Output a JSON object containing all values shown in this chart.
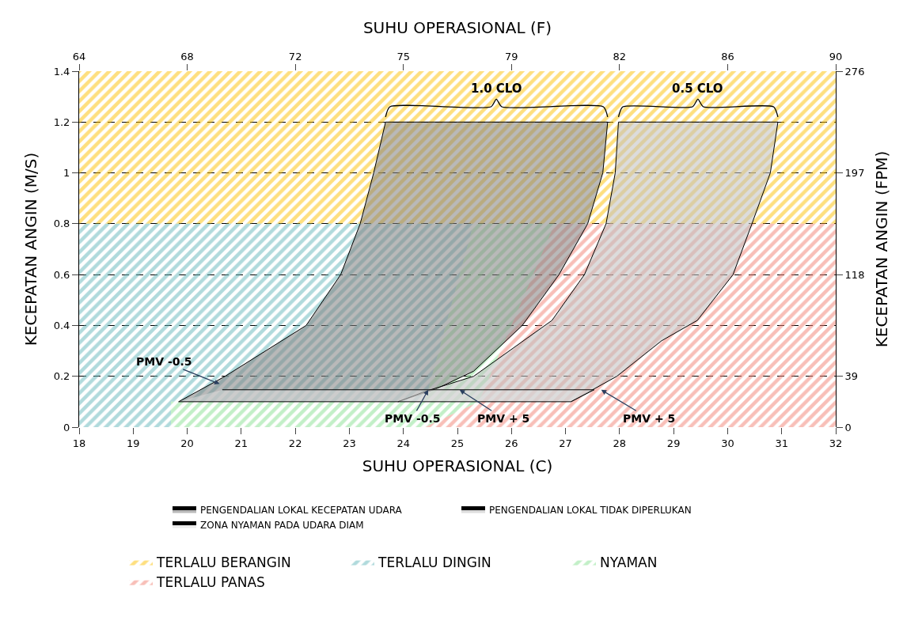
{
  "chart_data": {
    "type": "area",
    "xlabel": "SUHU OPERASIONAL (C)",
    "ylabel": "KECEPATAN ANGIN (M/S)",
    "x2label": "SUHU OPERASIONAL (F)",
    "y2label": "KECEPATAN ANGIN (FPM)",
    "xlim": [
      18,
      32
    ],
    "xticks": [
      18,
      19,
      20,
      21,
      22,
      23,
      24,
      25,
      26,
      27,
      28,
      29,
      30,
      31,
      32
    ],
    "ylim": [
      0,
      1.4
    ],
    "yticks": [
      0,
      0.2,
      0.4,
      0.6,
      0.8,
      1,
      1.2,
      1.4
    ],
    "x2lim": [
      64.4,
      89.6
    ],
    "x2ticks": [
      {
        "value": 64.4,
        "label": "64"
      },
      {
        "value": 68,
        "label": "68"
      },
      {
        "value": 71.6,
        "label": "72"
      },
      {
        "value": 75.2,
        "label": "75"
      },
      {
        "value": 78.8,
        "label": "79"
      },
      {
        "value": 82.4,
        "label": "82"
      },
      {
        "value": 86,
        "label": "86"
      },
      {
        "value": 89.6,
        "label": "90"
      }
    ],
    "y2lim": [
      0,
      275.6
    ],
    "y2ticks": [
      0,
      {
        "value": 39.37,
        "label": "39"
      },
      {
        "value": 118.11,
        "label": "118"
      },
      {
        "value": 196.85,
        "label": "197"
      },
      {
        "value": 275.6,
        "label": "276"
      }
    ],
    "series": [
      {
        "name": "TERLALU BERANGIN",
        "color": "#fdbf00",
        "x": [
          18,
          32,
          32,
          18
        ],
        "values": [
          0.8,
          0.8,
          1.4,
          1.4
        ]
      },
      {
        "name": "TERLALU DINGIN",
        "color": "#62b5b9",
        "x": [
          18,
          19.7,
          19.7,
          24.4,
          25.3,
          18
        ],
        "values": [
          0,
          0,
          0.1,
          0.1,
          0.8,
          0.8
        ]
      },
      {
        "name": "NYAMAN",
        "color": "#86e08f",
        "x": [
          19.7,
          24.4,
          25.4,
          26.8,
          25.3,
          24.4,
          19.7
        ],
        "values": [
          0,
          0,
          0.1,
          0.8,
          0.8,
          0.1,
          0.1
        ]
      },
      {
        "name": "TERLALU PANAS",
        "color": "#f27f72",
        "x": [
          24.4,
          32,
          32,
          26.8,
          25.4
        ],
        "values": [
          0,
          0,
          0.8,
          0.8,
          0.1
        ]
      },
      {
        "name": "PENGENDALIAN LOKAL KECEPATAN UDARA",
        "color": "#808080",
        "x": [
          19.84,
          20.7,
          22.2,
          22.84,
          23.2,
          23.45,
          23.67,
          27.78,
          27.69,
          27.41,
          26.88,
          26.2,
          25.3,
          24.6,
          23.9
        ],
        "values": [
          0.1,
          0.2,
          0.4,
          0.6,
          0.8,
          1.0,
          1.2,
          1.2,
          1.0,
          0.8,
          0.6,
          0.4,
          0.22,
          0.15,
          0.1
        ]
      },
      {
        "name": "PENGENDALIAN LOKAL TIDAK DIPERLUKAN",
        "color": "#c0c0c0",
        "x": [
          23.9,
          24.4,
          25.3,
          26.75,
          27.35,
          27.75,
          27.92,
          27.98,
          30.93,
          30.79,
          30.45,
          30.1,
          29.44,
          28.78,
          27.95,
          27.1
        ],
        "values": [
          0.1,
          0.14,
          0.2,
          0.42,
          0.6,
          0.8,
          1.0,
          1.2,
          1.2,
          1.0,
          0.8,
          0.6,
          0.42,
          0.34,
          0.2,
          0.1
        ]
      },
      {
        "name": "ZONA NYAMAN PADA UDARA DIAM",
        "color": "#dcdcdc",
        "x": [
          19.84,
          27.1,
          27.53,
          20.65
        ],
        "values": [
          0.1,
          0.1,
          0.147,
          0.147
        ]
      },
      {
        "type": "line",
        "color": "#000000",
        "x": [
          23.67,
          23.75,
          25.62,
          25.72,
          25.82,
          27.7,
          27.78
        ],
        "values": [
          1.22,
          1.26,
          1.26,
          1.29,
          1.26,
          1.26,
          1.22
        ]
      },
      {
        "type": "line",
        "color": "#000000",
        "x": [
          27.98,
          28.06,
          29.35,
          29.45,
          29.55,
          30.85,
          30.93
        ],
        "values": [
          1.22,
          1.26,
          1.26,
          1.29,
          1.26,
          1.26,
          1.22
        ]
      }
    ],
    "annotations": [
      {
        "text": "PMV -0.5",
        "x": 20.6,
        "y": 0.17
      },
      {
        "text": "PMV -0.5",
        "x": 24.46,
        "y": 0.147
      },
      {
        "text": "PMV + 5",
        "x": 25.04,
        "y": 0.147
      },
      {
        "text": "PMV + 5",
        "x": 27.66,
        "y": 0.147
      },
      {
        "text": "1.0 CLO",
        "x": 25.72,
        "y": 1.29
      },
      {
        "text": "0.5 CLO",
        "x": 29.45,
        "y": 1.29
      }
    ],
    "grid": true,
    "legend": "bottom"
  }
}
